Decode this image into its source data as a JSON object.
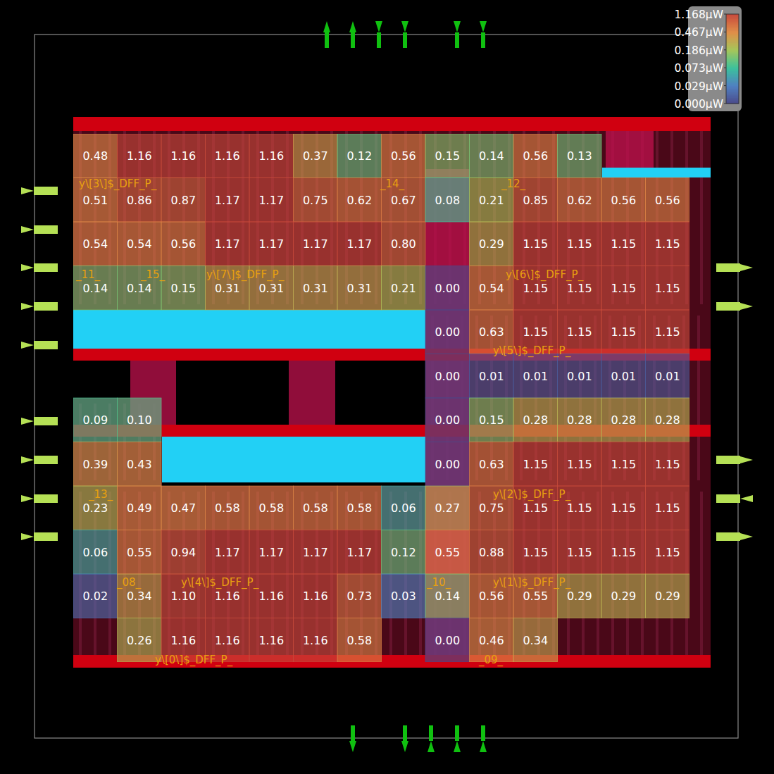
{
  "chart_data": {
    "type": "heatmap",
    "data_labels": true,
    "values": [
      [
        0.48,
        1.16,
        1.16,
        1.16,
        1.16,
        0.37,
        0.12,
        0.56,
        0.15,
        0.14,
        0.56,
        0.13,
        null,
        null
      ],
      [
        0.51,
        0.86,
        0.87,
        1.17,
        1.17,
        0.75,
        0.62,
        0.67,
        0.08,
        0.21,
        0.85,
        0.62,
        0.56,
        0.56
      ],
      [
        0.54,
        0.54,
        0.56,
        1.17,
        1.17,
        1.17,
        1.17,
        0.8,
        null,
        0.29,
        1.15,
        1.15,
        1.15,
        1.15
      ],
      [
        0.14,
        0.14,
        0.15,
        0.31,
        0.31,
        0.31,
        0.31,
        0.21,
        0,
        0.54,
        1.15,
        1.15,
        1.15,
        1.15
      ],
      [
        null,
        null,
        null,
        null,
        null,
        null,
        null,
        null,
        0,
        0.63,
        1.15,
        1.15,
        1.15,
        1.15
      ],
      [
        null,
        null,
        null,
        null,
        null,
        null,
        null,
        null,
        0,
        0.01,
        0.01,
        0.01,
        0.01,
        0.01
      ],
      [
        0.09,
        0.1,
        null,
        null,
        null,
        null,
        null,
        null,
        0,
        0.15,
        0.28,
        0.28,
        0.28,
        0.28
      ],
      [
        0.39,
        0.43,
        null,
        null,
        null,
        null,
        null,
        null,
        0,
        0.63,
        1.15,
        1.15,
        1.15,
        1.15
      ],
      [
        0.23,
        0.49,
        0.47,
        0.58,
        0.58,
        0.58,
        0.58,
        0.06,
        0.27,
        0.75,
        1.15,
        1.15,
        1.15,
        1.15
      ],
      [
        0.06,
        0.55,
        0.94,
        1.17,
        1.17,
        1.17,
        1.17,
        0.12,
        0.55,
        0.88,
        1.15,
        1.15,
        1.15,
        1.15
      ],
      [
        0.02,
        0.34,
        1.1,
        1.16,
        1.16,
        1.16,
        0.73,
        0.03,
        0.14,
        0.56,
        0.55,
        0.29,
        0.29,
        0.29
      ],
      [
        null,
        0.26,
        1.16,
        1.16,
        1.16,
        1.16,
        0.58,
        null,
        0,
        0.46,
        0.34,
        null,
        null,
        null
      ]
    ],
    "value_labels": [
      [
        "0.48",
        "1.16",
        "1.16",
        "1.16",
        "1.16",
        "0.37",
        "0.12",
        "0.56",
        "0.15",
        "0.14",
        "0.56",
        "0.13",
        null,
        null
      ],
      [
        "0.51",
        "0.86",
        "0.87",
        "1.17",
        "1.17",
        "0.75",
        "0.62",
        "0.67",
        "0.08",
        "0.21",
        "0.85",
        "0.62",
        "0.56",
        "0.56"
      ],
      [
        "0.54",
        "0.54",
        "0.56",
        "1.17",
        "1.17",
        "1.17",
        "1.17",
        "0.80",
        null,
        "0.29",
        "1.15",
        "1.15",
        "1.15",
        "1.15"
      ],
      [
        "0.14",
        "0.14",
        "0.15",
        "0.31",
        "0.31",
        "0.31",
        "0.31",
        "0.21",
        "0.00",
        "0.54",
        "1.15",
        "1.15",
        "1.15",
        "1.15"
      ],
      [
        null,
        null,
        null,
        null,
        null,
        null,
        null,
        null,
        "0.00",
        "0.63",
        "1.15",
        "1.15",
        "1.15",
        "1.15"
      ],
      [
        null,
        null,
        null,
        null,
        null,
        null,
        null,
        null,
        "0.00",
        "0.01",
        "0.01",
        "0.01",
        "0.01",
        "0.01"
      ],
      [
        "0.09",
        "0.10",
        null,
        null,
        null,
        null,
        null,
        null,
        "0.00",
        "0.15",
        "0.28",
        "0.28",
        "0.28",
        "0.28"
      ],
      [
        "0.39",
        "0.43",
        null,
        null,
        null,
        null,
        null,
        null,
        "0.00",
        "0.63",
        "1.15",
        "1.15",
        "1.15",
        "1.15"
      ],
      [
        "0.23",
        "0.49",
        "0.47",
        "0.58",
        "0.58",
        "0.58",
        "0.58",
        "0.06",
        "0.27",
        "0.75",
        "1.15",
        "1.15",
        "1.15",
        "1.15"
      ],
      [
        "0.06",
        "0.55",
        "0.94",
        "1.17",
        "1.17",
        "1.17",
        "1.17",
        "0.12",
        "0.55",
        "0.88",
        "1.15",
        "1.15",
        "1.15",
        "1.15"
      ],
      [
        "0.02",
        "0.34",
        "1.10",
        "1.16",
        "1.16",
        "1.16",
        "0.73",
        "0.03",
        "0.14",
        "0.56",
        "0.55",
        "0.29",
        "0.29",
        "0.29"
      ],
      [
        null,
        "0.26",
        "1.16",
        "1.16",
        "1.16",
        "1.16",
        "0.58",
        null,
        "0.00",
        "0.46",
        "0.34",
        null,
        null,
        null
      ]
    ],
    "colorbar": {
      "range": [
        0,
        1.168
      ],
      "ticks": [
        {
          "value": 0,
          "label": "0.000µW"
        },
        {
          "value": 0.029,
          "label": "0.029µW"
        },
        {
          "value": 0.073,
          "label": "0.073µW"
        },
        {
          "value": 0.186,
          "label": "0.186µW"
        },
        {
          "value": 0.467,
          "label": "0.467µW"
        },
        {
          "value": 1.168,
          "label": "1.168µW"
        }
      ]
    },
    "annotations": [
      "y\\[3\\]$_DFF_P_",
      "_14_",
      "_12_",
      "_11_",
      "_15_",
      "y\\[7\\]$_DFF_P_",
      "y\\[6\\]$_DFF_P_",
      "y\\[5\\]$_DFF_P_",
      "_13_",
      "y\\[2\\]$_DFF_P_",
      "_08_",
      "y\\[4\\]$_DFF_P_",
      "_10_",
      "y\\[1\\]$_DFF_P_",
      "y\\[0\\]$_DFF_P_",
      "_09_"
    ]
  }
}
